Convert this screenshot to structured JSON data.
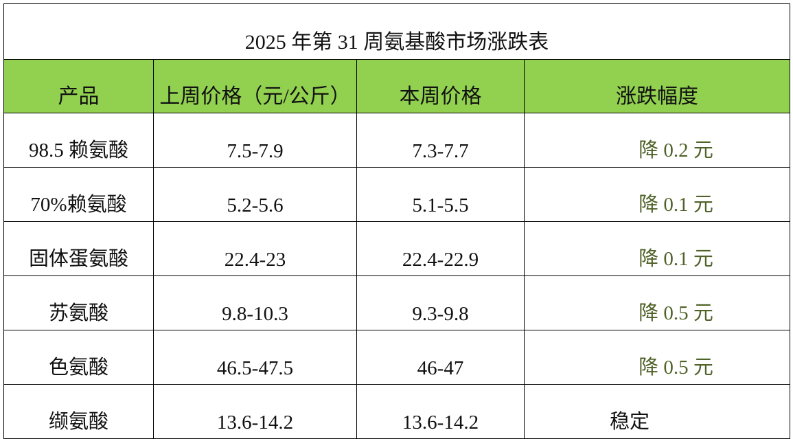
{
  "table": {
    "title": "2025 年第 31 周氨基酸市场涨跌表",
    "header": [
      "产品",
      "上周价格（元/公斤）",
      "本周价格",
      "涨跌幅度"
    ],
    "rows": [
      [
        "98.5 赖氨酸",
        "7.5-7.9",
        "7.3-7.7",
        "降 0.2 元"
      ],
      [
        "70%赖氨酸",
        "5.2-5.6",
        "5.1-5.5",
        "降 0.1 元"
      ],
      [
        "固体蛋氨酸",
        "22.4-23",
        "22.4-22.9",
        "降 0.1 元"
      ],
      [
        "苏氨酸",
        "9.8-10.3",
        "9.3-9.8",
        "降 0.5 元"
      ],
      [
        "色氨酸",
        "46.5-47.5",
        "46-47",
        "降 0.5 元"
      ],
      [
        "缬氨酸",
        "13.6-14.2",
        "13.6-14.2",
        "稳定"
      ]
    ]
  }
}
